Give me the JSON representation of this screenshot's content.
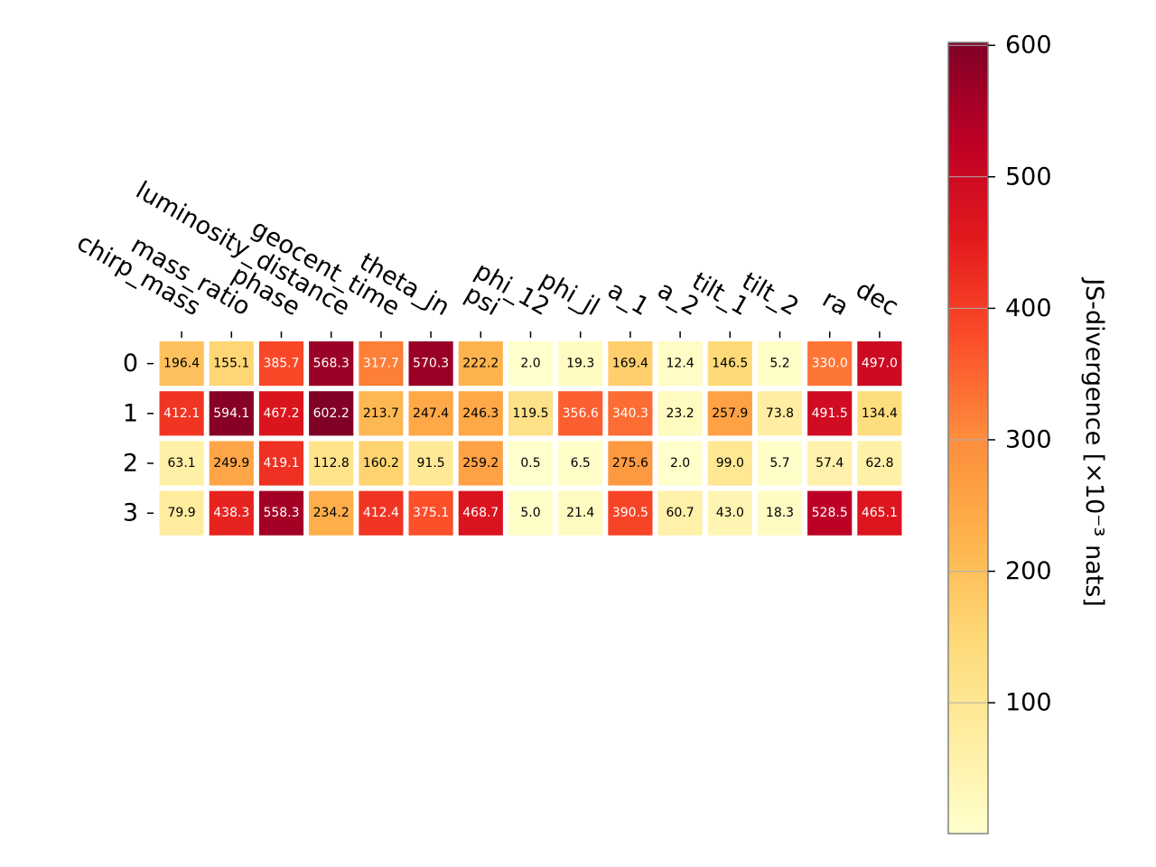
{
  "chart_data": {
    "type": "heatmap",
    "title": "",
    "xlabel": "",
    "ylabel": "",
    "columns": [
      "chirp_mass",
      "mass_ratio",
      "phase",
      "luminosity_distance",
      "geocent_time",
      "theta_jn",
      "psi",
      "phi_12",
      "phi_jl",
      "a_1",
      "a_2",
      "tilt_1",
      "tilt_2",
      "ra",
      "dec"
    ],
    "rows": [
      "0",
      "1",
      "2",
      "3"
    ],
    "values": [
      [
        196.4,
        155.1,
        385.7,
        568.3,
        317.7,
        570.3,
        222.2,
        2.0,
        19.3,
        169.4,
        12.4,
        146.5,
        5.2,
        330.0,
        497.0
      ],
      [
        412.1,
        594.1,
        467.2,
        602.2,
        213.7,
        247.4,
        246.3,
        119.5,
        356.6,
        340.3,
        23.2,
        257.9,
        73.8,
        491.5,
        134.4
      ],
      [
        63.1,
        249.9,
        419.1,
        112.8,
        160.2,
        91.5,
        259.2,
        0.5,
        6.5,
        275.6,
        2.0,
        99.0,
        5.7,
        57.4,
        62.8
      ],
      [
        79.9,
        438.3,
        558.3,
        234.2,
        412.4,
        375.1,
        468.7,
        5.0,
        21.4,
        390.5,
        60.7,
        43.0,
        18.3,
        528.5,
        465.1
      ]
    ],
    "colormap": "YlOrRd",
    "colorbar": {
      "label": "JS-divergence [×10⁻³ nats]",
      "ticks": [
        100,
        200,
        300,
        400,
        500,
        600
      ],
      "range": [
        0.5,
        602.2
      ]
    },
    "grid": false
  }
}
